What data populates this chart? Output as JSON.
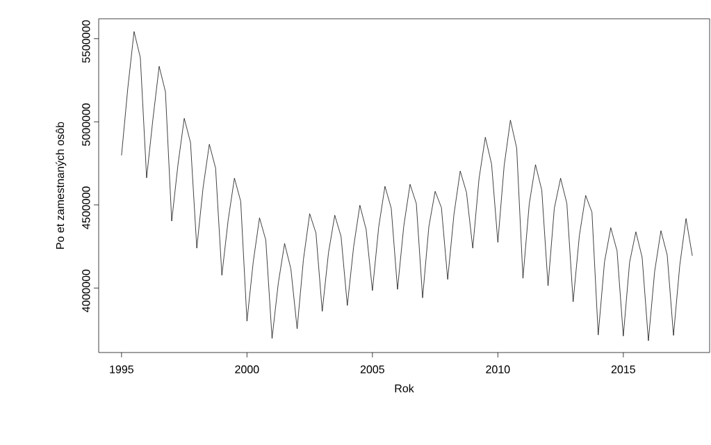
{
  "chart_data": {
    "type": "line",
    "xlabel": "Rok",
    "ylabel": "Po et zamestnaných osôb",
    "x": [
      1995.0,
      1995.25,
      1995.5,
      1995.75,
      1996.0,
      1996.25,
      1996.5,
      1996.75,
      1997.0,
      1997.25,
      1997.5,
      1997.75,
      1998.0,
      1998.25,
      1998.5,
      1998.75,
      1999.0,
      1999.25,
      1999.5,
      1999.75,
      2000.0,
      2000.25,
      2000.5,
      2000.75,
      2001.0,
      2001.25,
      2001.5,
      2001.75,
      2002.0,
      2002.25,
      2002.5,
      2002.75,
      2003.0,
      2003.25,
      2003.5,
      2003.75,
      2004.0,
      2004.25,
      2004.5,
      2004.75,
      2005.0,
      2005.25,
      2005.5,
      2005.75,
      2006.0,
      2006.25,
      2006.5,
      2006.75,
      2007.0,
      2007.25,
      2007.5,
      2007.75,
      2008.0,
      2008.25,
      2008.5,
      2008.75,
      2009.0,
      2009.25,
      2009.5,
      2009.75,
      2010.0,
      2010.25,
      2010.5,
      2010.75,
      2011.0,
      2011.25,
      2011.5,
      2011.75,
      2012.0,
      2012.25,
      2012.5,
      2012.75,
      2013.0,
      2013.25,
      2013.5,
      2013.75,
      2014.0,
      2014.25,
      2014.5,
      2014.75,
      2015.0,
      2015.25,
      2015.5,
      2015.75,
      2016.0,
      2016.25,
      2016.5,
      2016.75,
      2017.0,
      2017.25,
      2017.5,
      2017.75
    ],
    "series": [
      {
        "color": "#000000",
        "values": [
          4798000,
          5202000,
          5543000,
          5386000,
          4663000,
          5014000,
          5334000,
          5181000,
          4403000,
          4742000,
          5021000,
          4875000,
          4240000,
          4603000,
          4865000,
          4721000,
          4077000,
          4408000,
          4661000,
          4522000,
          3801000,
          4157000,
          4422000,
          4289000,
          3697000,
          4031000,
          4268000,
          4115000,
          3755000,
          4171000,
          4447000,
          4331000,
          3860000,
          4213000,
          4438000,
          4310000,
          3895000,
          4247000,
          4498000,
          4352000,
          3985000,
          4366000,
          4612000,
          4480000,
          3992000,
          4373000,
          4624000,
          4508000,
          3941000,
          4370000,
          4582000,
          4484000,
          4052000,
          4443000,
          4704000,
          4575000,
          4240000,
          4658000,
          4907000,
          4745000,
          4275000,
          4735000,
          5010000,
          4842000,
          4059000,
          4505000,
          4742000,
          4589000,
          4014000,
          4480000,
          4661000,
          4508000,
          3917000,
          4317000,
          4557000,
          4456000,
          3718000,
          4157000,
          4363000,
          4224000,
          3711000,
          4154000,
          4338000,
          4185000,
          3683000,
          4101000,
          4345000,
          4198000,
          3715000,
          4136000,
          4418000,
          4194000
        ]
      }
    ],
    "xlim": [
      1994.09,
      2018.44
    ],
    "ylim": [
      3612000,
      5620000
    ],
    "xticks": [
      1995,
      2000,
      2005,
      2010,
      2015
    ],
    "yticks": [
      4000000,
      4500000,
      5000000,
      5500000
    ],
    "marker": "none",
    "line_style": "solid"
  }
}
